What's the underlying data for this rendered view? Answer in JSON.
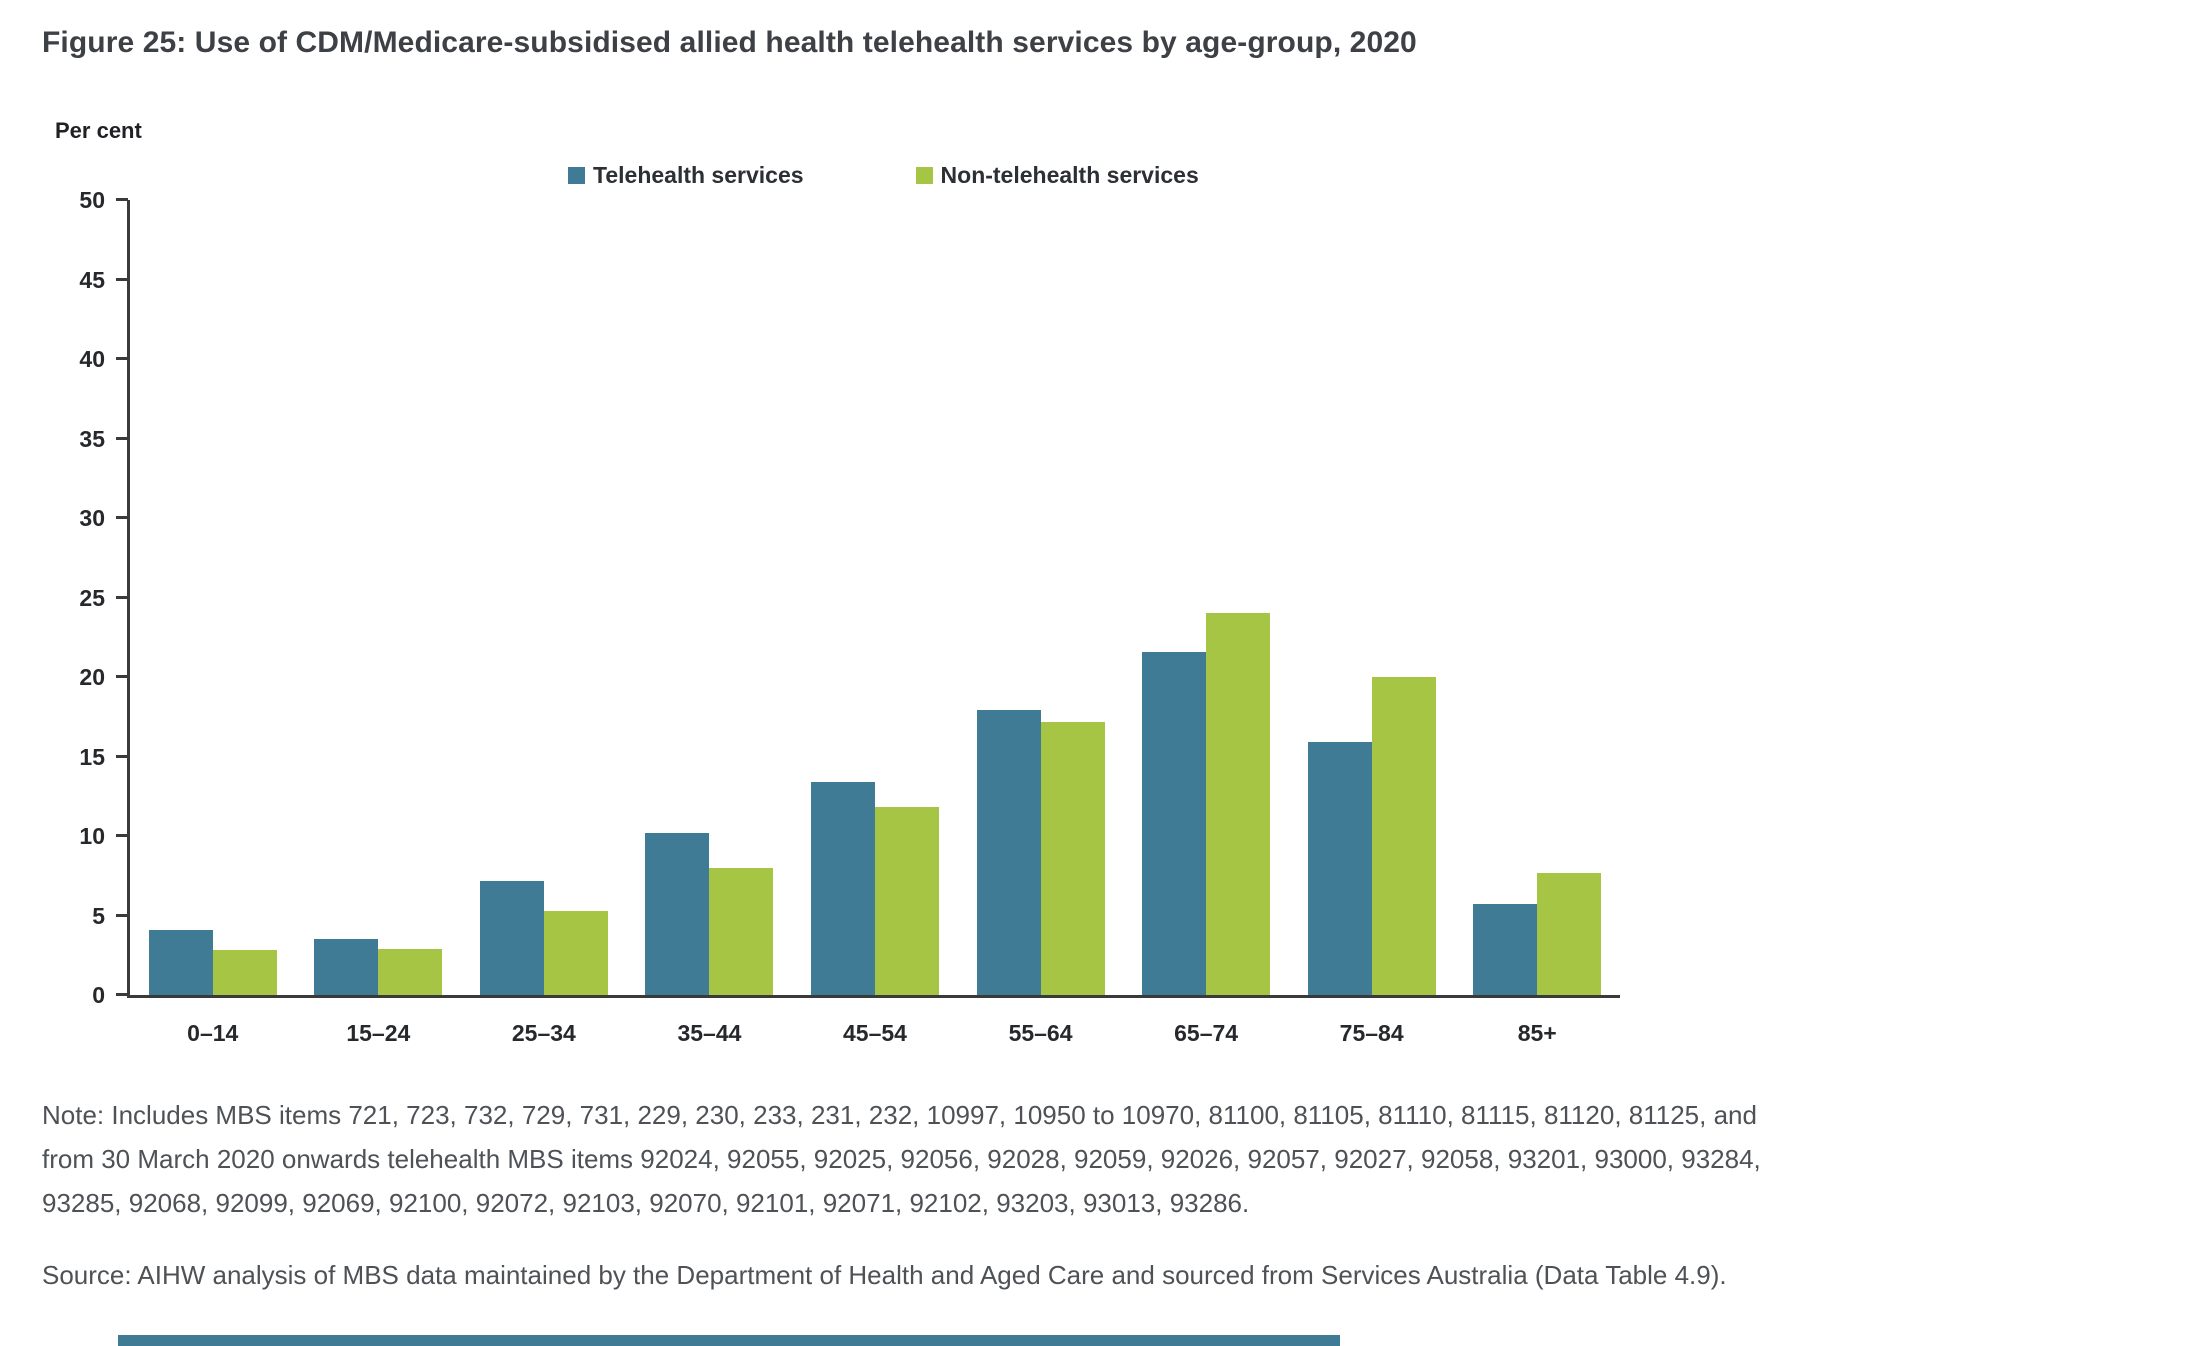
{
  "figure": {
    "title": "Figure 25: Use of CDM/Medicare-subsidised allied health telehealth services by age-group, 2020",
    "note_lines": [
      "Note: Includes MBS items 721, 723, 732, 729, 731, 229, 230, 233, 231, 232, 10997, 10950 to 10970, 81100, 81105, 81110, 81115, 81120, 81125, and",
      "from 30 March 2020 onwards telehealth MBS items 92024, 92055, 92025, 92056, 92028, 92059, 92026, 92057, 92027, 92058, 93201, 93000, 93284,",
      "93285, 92068, 92099, 92069, 92100, 92072, 92103, 92070, 92101, 92071, 92102, 93203, 93013, 93286."
    ],
    "source": "Source: AIHW analysis of MBS data maintained by the Department of Health and Aged Care and sourced from Services Australia (Data Table 4.9)."
  },
  "chart_data": {
    "type": "bar",
    "title": "Use of CDM/Medicare-subsidised allied health telehealth services by age-group, 2020",
    "xlabel": "",
    "ylabel": "Per cent",
    "ylim": [
      0,
      50
    ],
    "ytick_step": 5,
    "grid": false,
    "legend_position": "top",
    "categories": [
      "0–14",
      "15–24",
      "25–34",
      "35–44",
      "45–54",
      "55–64",
      "65–74",
      "75–84",
      "85+"
    ],
    "series": [
      {
        "name": "Telehealth services",
        "color": "#3f7b95",
        "values": [
          4.1,
          3.5,
          7.2,
          10.2,
          13.4,
          17.9,
          21.6,
          15.9,
          5.7
        ]
      },
      {
        "name": "Non-telehealth services",
        "color": "#a6c545",
        "values": [
          2.8,
          2.9,
          5.3,
          8.0,
          11.8,
          17.2,
          24.0,
          20.0,
          7.7
        ]
      }
    ]
  },
  "colors": {
    "axis": "#3a3a3a",
    "title_text": "#3d4045",
    "note_text": "#4e5256",
    "accent_bar": "#3f7b95"
  }
}
